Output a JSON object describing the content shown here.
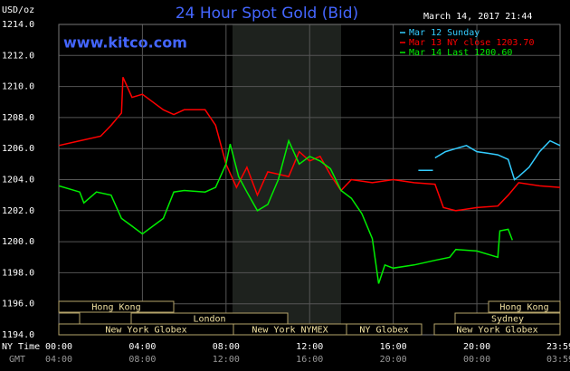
{
  "chart_data": {
    "type": "line",
    "title": "24 Hour Spot Gold (Bid)",
    "date_label": "March 14, 2017 21:44",
    "unit_label": "USD/oz",
    "site": "www.kitco.com",
    "xaxis_label": "NY Time",
    "x2axis_label": "GMT",
    "xlim": [
      0,
      23.98
    ],
    "ylim": [
      1194,
      1214
    ],
    "grid": true,
    "yticks": [
      {
        "value": 1194,
        "label": "1194.0"
      },
      {
        "value": 1196,
        "label": "1196.0"
      },
      {
        "value": 1198,
        "label": "1198.0"
      },
      {
        "value": 1200,
        "label": "1200.0"
      },
      {
        "value": 1202,
        "label": "1202.0"
      },
      {
        "value": 1204,
        "label": "1204.0"
      },
      {
        "value": 1206,
        "label": "1206.0"
      },
      {
        "value": 1208,
        "label": "1208.0"
      },
      {
        "value": 1210,
        "label": "1210.0"
      },
      {
        "value": 1212,
        "label": "1212.0"
      },
      {
        "value": 1214,
        "label": "1214.0"
      }
    ],
    "xticks": [
      {
        "value": 0,
        "label": "00:00"
      },
      {
        "value": 4,
        "label": "04:00"
      },
      {
        "value": 8,
        "label": "08:00"
      },
      {
        "value": 12,
        "label": "12:00"
      },
      {
        "value": 16,
        "label": "16:00"
      },
      {
        "value": 20,
        "label": "20:00"
      },
      {
        "value": 23.98,
        "label": "23:59"
      }
    ],
    "x2tick_labels": [
      "04:00",
      "08:00",
      "12:00",
      "16:00",
      "20:00",
      "00:00",
      "03:59"
    ],
    "sessions": [
      "Hong Kong",
      "Hong Kong",
      "London",
      "Sydney",
      "New York Globex",
      "New York NYMEX",
      "NY Globex",
      "New York Globex"
    ],
    "series": [
      {
        "name": "Mar 12 Sunday",
        "color": "#33ccff",
        "x": [
          17.2,
          17.9,
          17.95,
          18.0,
          18.5,
          19.0,
          19.5,
          20.0,
          20.5,
          21.0,
          21.5,
          21.8,
          22.0,
          22.5,
          23.0,
          23.5,
          23.98
        ],
        "values": [
          1204.6,
          1204.6,
          null,
          1205.4,
          1205.8,
          1206.0,
          1206.2,
          1205.8,
          1205.7,
          1205.6,
          1205.3,
          1204.0,
          1204.2,
          1204.8,
          1205.8,
          1206.5,
          1206.2
        ]
      },
      {
        "name": "Mar 13 NY close 1203.70",
        "color": "#ff0000",
        "x": [
          0,
          1,
          2,
          2.5,
          3,
          3.07,
          3.5,
          4,
          4.5,
          5,
          5.5,
          6,
          7,
          7.5,
          7.8,
          8,
          8.5,
          9,
          9.5,
          10,
          11,
          11.5,
          12,
          12.5,
          13,
          13.5,
          14,
          15,
          16,
          17,
          18,
          18.4,
          19,
          20,
          21,
          21.5,
          22,
          23,
          23.98
        ],
        "values": [
          1206.2,
          1206.5,
          1206.8,
          1207.5,
          1208.3,
          1210.6,
          1209.3,
          1209.5,
          1209.0,
          1208.5,
          1208.2,
          1208.5,
          1208.5,
          1207.5,
          1206.0,
          1205.0,
          1203.5,
          1204.8,
          1203.0,
          1204.5,
          1204.2,
          1205.8,
          1205.2,
          1205.5,
          1204.3,
          1203.3,
          1204.0,
          1203.8,
          1204.0,
          1203.8,
          1203.7,
          1202.2,
          1202.0,
          1202.2,
          1202.3,
          1203.0,
          1203.8,
          1203.6,
          1203.5
        ]
      },
      {
        "name": "Mar 14 Last 1200.60",
        "color": "#00ee00",
        "x": [
          0,
          1,
          1.2,
          1.8,
          2.5,
          3,
          3.5,
          4,
          4.5,
          5,
          5.5,
          6,
          7,
          7.5,
          8,
          8.2,
          8.6,
          9,
          9.5,
          10,
          10.5,
          11,
          11.5,
          12,
          12.5,
          13,
          13.5,
          14,
          14.5,
          15,
          15.3,
          15.6,
          16,
          17,
          18,
          18.7,
          19,
          20,
          21,
          21.1,
          21.5,
          21.7
        ],
        "values": [
          1203.6,
          1203.2,
          1202.5,
          1203.2,
          1203.0,
          1201.5,
          1201.0,
          1200.5,
          1201.0,
          1201.5,
          1203.2,
          1203.3,
          1203.2,
          1203.5,
          1205.0,
          1206.3,
          1204.2,
          1203.2,
          1202.0,
          1202.4,
          1204.0,
          1206.5,
          1205.0,
          1205.5,
          1205.2,
          1204.7,
          1203.3,
          1202.8,
          1201.8,
          1200.2,
          1197.3,
          1198.5,
          1198.3,
          1198.5,
          1198.8,
          1199.0,
          1199.5,
          1199.4,
          1199.0,
          1200.7,
          1200.8,
          1200.1
        ]
      }
    ]
  }
}
